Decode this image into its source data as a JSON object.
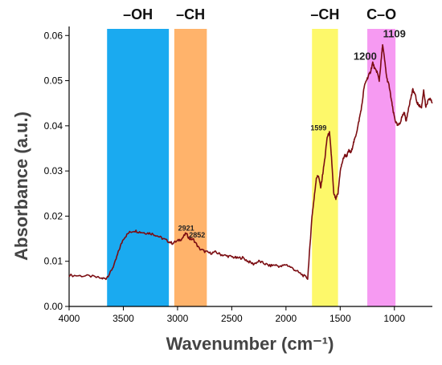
{
  "chart_data": {
    "type": "line",
    "xlabel": "Wavenumber (cm⁻¹)",
    "ylabel": "Absorbance (a.u.)",
    "xlim": [
      4000,
      650
    ],
    "ylim": [
      0,
      0.062
    ],
    "x_reversed": true,
    "xticks": [
      4000,
      3500,
      3000,
      2500,
      2000,
      1500,
      1000
    ],
    "yticks": [
      0.0,
      0.01,
      0.02,
      0.03,
      0.04,
      0.05,
      0.06
    ],
    "xtick_labels": [
      "4000",
      "3500",
      "3000",
      "2500",
      "2000",
      "1500",
      "1000"
    ],
    "ytick_labels": [
      "0.00",
      "0.01",
      "0.02",
      "0.03",
      "0.04",
      "0.05",
      "0.06"
    ],
    "grid": false,
    "line_color": "#7b0d12",
    "bands": [
      {
        "label": "–OH",
        "from": 3650,
        "to": 3080,
        "color": "#1aaaf0"
      },
      {
        "label": "–CH",
        "from": 3030,
        "to": 2730,
        "color": "#ffb36b"
      },
      {
        "label": "–CH",
        "from": 1760,
        "to": 1520,
        "color": "#fdf86a"
      },
      {
        "label": "C–O",
        "from": 1250,
        "to": 990,
        "color": "#f69af2"
      }
    ],
    "annotations": [
      {
        "text": "2921",
        "x": 2921,
        "y": 0.0168
      },
      {
        "text": "2852",
        "x": 2820,
        "y": 0.0153
      },
      {
        "text": "1599",
        "x": 1700,
        "y": 0.039
      },
      {
        "text": "1200",
        "x": 1270,
        "y": 0.0546
      },
      {
        "text": "1109",
        "x": 1000,
        "y": 0.0596
      }
    ],
    "series": [
      {
        "x": [
          4000,
          3900,
          3800,
          3700,
          3660,
          3620,
          3580,
          3540,
          3500,
          3450,
          3400,
          3350,
          3300,
          3250,
          3200,
          3150,
          3100,
          3050,
          3000,
          2960,
          2921,
          2890,
          2852,
          2800,
          2750,
          2700,
          2650,
          2600,
          2550,
          2500,
          2450,
          2400,
          2350,
          2300,
          2250,
          2200,
          2150,
          2100,
          2050,
          2000,
          1950,
          1900,
          1850,
          1800,
          1780,
          1760,
          1740,
          1720,
          1700,
          1680,
          1660,
          1640,
          1620,
          1599,
          1580,
          1560,
          1540,
          1520,
          1500,
          1480,
          1460,
          1440,
          1420,
          1400,
          1380,
          1360,
          1340,
          1320,
          1300,
          1280,
          1260,
          1240,
          1220,
          1200,
          1180,
          1160,
          1140,
          1120,
          1109,
          1090,
          1070,
          1050,
          1030,
          1010,
          990,
          970,
          950,
          930,
          910,
          890,
          870,
          850,
          830,
          810,
          790,
          770,
          750,
          730,
          710,
          690,
          670,
          650
        ],
        "y": [
          0.0069,
          0.0068,
          0.0067,
          0.0062,
          0.0062,
          0.0075,
          0.0095,
          0.0125,
          0.015,
          0.0163,
          0.0168,
          0.0165,
          0.0163,
          0.0162,
          0.0158,
          0.0152,
          0.0146,
          0.014,
          0.0145,
          0.015,
          0.0162,
          0.015,
          0.0148,
          0.0128,
          0.0122,
          0.0118,
          0.012,
          0.0115,
          0.0112,
          0.011,
          0.0107,
          0.0108,
          0.01,
          0.0094,
          0.01,
          0.0095,
          0.009,
          0.0092,
          0.0088,
          0.0093,
          0.0086,
          0.0078,
          0.007,
          0.0062,
          0.013,
          0.02,
          0.024,
          0.0285,
          0.029,
          0.0262,
          0.0295,
          0.033,
          0.0375,
          0.0385,
          0.033,
          0.025,
          0.0238,
          0.025,
          0.03,
          0.032,
          0.0335,
          0.0333,
          0.0345,
          0.034,
          0.036,
          0.0375,
          0.0395,
          0.042,
          0.0445,
          0.0485,
          0.05,
          0.051,
          0.052,
          0.054,
          0.0525,
          0.052,
          0.05,
          0.055,
          0.058,
          0.0545,
          0.0505,
          0.049,
          0.046,
          0.043,
          0.041,
          0.04,
          0.0405,
          0.042,
          0.043,
          0.041,
          0.044,
          0.046,
          0.048,
          0.047,
          0.045,
          0.0445,
          0.044,
          0.048,
          0.044,
          0.0455,
          0.046,
          0.045
        ]
      }
    ]
  }
}
